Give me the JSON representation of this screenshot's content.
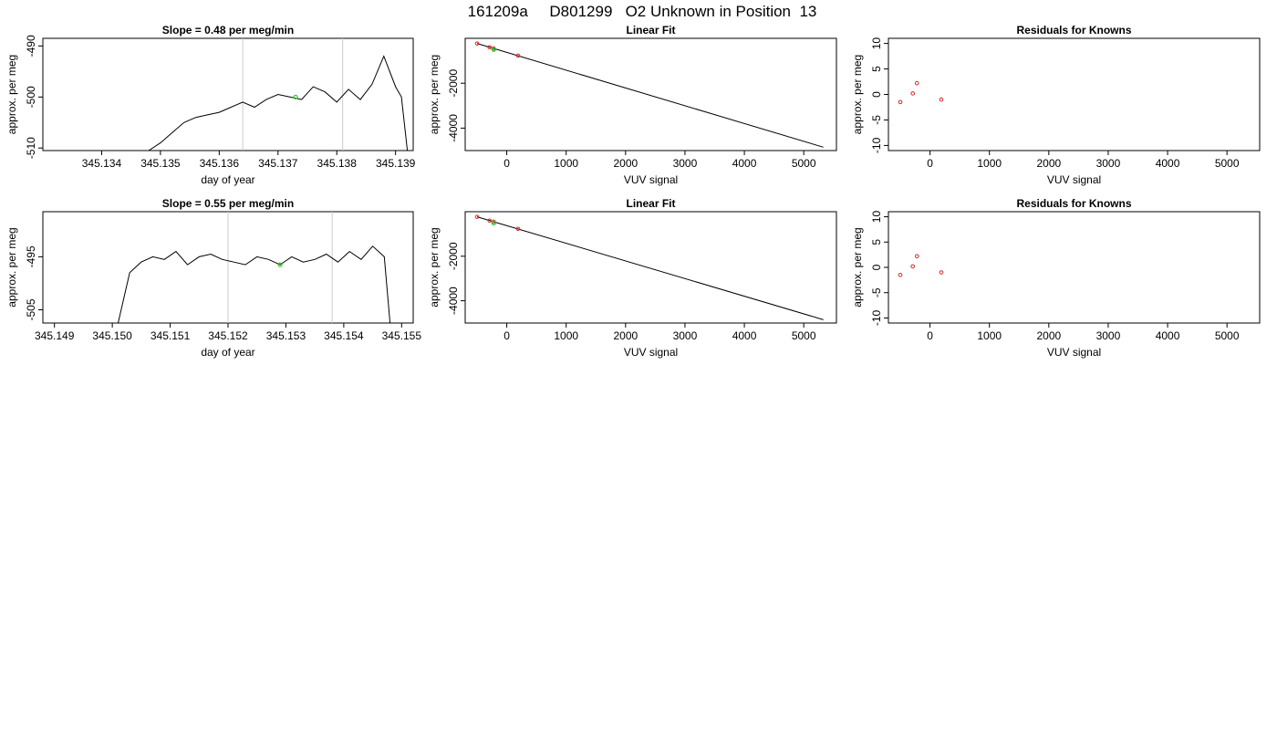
{
  "main_title": "161209a     D801299   O2 Unknown in Position  13",
  "colors": {
    "line": "#000000",
    "known_point": "#d62728",
    "unknown_point": "#22cc22",
    "marker_line": "#cccccc",
    "background": "#ffffff"
  },
  "chart_data": [
    {
      "type": "line",
      "title": "Slope =  0.48  per meg/min",
      "xlabel": "day of year",
      "ylabel": "approx. per meg",
      "xlim": [
        345.133,
        345.1393
      ],
      "ylim": [
        -510.5,
        -488.5
      ],
      "xticks": [
        345.134,
        345.135,
        345.136,
        345.137,
        345.138,
        345.139
      ],
      "xtick_labels": [
        "345.134",
        "345.135",
        "345.136",
        "345.137",
        "345.138",
        "345.139"
      ],
      "yticks": [
        -490,
        -500,
        -510
      ],
      "ytick_labels": [
        "-490",
        "-500",
        "-510"
      ],
      "vlines": [
        345.1364,
        345.1381
      ],
      "highlight_point": {
        "x": 345.1373,
        "y": -500.0
      },
      "series": [
        {
          "x": [
            345.1348,
            345.135,
            345.1352,
            345.1354,
            345.1356,
            345.1358,
            345.136,
            345.1362,
            345.1364,
            345.1366,
            345.1368,
            345.137,
            345.1372,
            345.1374,
            345.1376,
            345.1378,
            345.138,
            345.1382,
            345.1384,
            345.1386,
            345.1388,
            345.139,
            345.1391,
            345.1392
          ],
          "y": [
            -510.5,
            -509.0,
            -507.0,
            -505.0,
            -504.0,
            -503.5,
            -503.0,
            -502.0,
            -501.0,
            -502.0,
            -500.5,
            -499.5,
            -500.0,
            -500.5,
            -498.0,
            -499.0,
            -501.0,
            -498.5,
            -500.5,
            -497.5,
            -492.0,
            -498.0,
            -500.0,
            -510.5
          ]
        }
      ]
    },
    {
      "type": "scatter",
      "title": "Linear Fit",
      "xlabel": "VUV signal",
      "ylabel": "approx. per meg",
      "xlim": [
        -700,
        5550
      ],
      "ylim": [
        -5000,
        0
      ],
      "xticks": [
        0,
        1000,
        2000,
        3000,
        4000,
        5000
      ],
      "xtick_labels": [
        "0",
        "1000",
        "2000",
        "3000",
        "4000",
        "5000"
      ],
      "yticks": [
        -2000,
        -4000
      ],
      "ytick_labels": [
        "-2000",
        "-4000"
      ],
      "fit_line": {
        "x": [
          -500,
          5330
        ],
        "y": [
          -230,
          -4850
        ]
      },
      "known_points": {
        "x": [
          -500,
          -290,
          -220,
          190
        ],
        "y": [
          -231,
          -400,
          -450,
          -770
        ]
      },
      "unknown_points": {
        "x": [
          -220
        ],
        "y": [
          -500
        ]
      }
    },
    {
      "type": "scatter",
      "title": "Residuals for Knowns",
      "xlabel": "VUV signal",
      "ylabel": "approx. per meg",
      "xlim": [
        -700,
        5550
      ],
      "ylim": [
        -11,
        11
      ],
      "xticks": [
        0,
        1000,
        2000,
        3000,
        4000,
        5000
      ],
      "xtick_labels": [
        "0",
        "1000",
        "2000",
        "3000",
        "4000",
        "5000"
      ],
      "yticks": [
        10,
        5,
        0,
        -5,
        -10
      ],
      "ytick_labels": [
        "10",
        "5",
        "0",
        "-5",
        "-10"
      ],
      "known_points": {
        "x": [
          -500,
          -290,
          -220,
          190
        ],
        "y": [
          -1.5,
          0.2,
          2.2,
          -1.0
        ]
      }
    },
    {
      "type": "line",
      "title": "Slope =  0.55  per meg/min",
      "xlabel": "day of year",
      "ylabel": "approx. per meg",
      "xlim": [
        345.1488,
        345.1552
      ],
      "ylim": [
        -507.5,
        -486.5
      ],
      "xticks": [
        345.149,
        345.15,
        345.151,
        345.152,
        345.153,
        345.154,
        345.155
      ],
      "xtick_labels": [
        "345.149",
        "345.150",
        "345.151",
        "345.152",
        "345.153",
        "345.154",
        "345.155"
      ],
      "yticks": [
        -495,
        -505
      ],
      "ytick_labels": [
        "-495",
        "-505"
      ],
      "vlines": [
        345.152,
        345.1538
      ],
      "highlight_point": {
        "x": 345.1529,
        "y": -496.5
      },
      "series": [
        {
          "x": [
            345.1501,
            345.1503,
            345.1505,
            345.1507,
            345.1509,
            345.1511,
            345.1513,
            345.1515,
            345.1517,
            345.1519,
            345.1521,
            345.1523,
            345.1525,
            345.1527,
            345.1529,
            345.1531,
            345.1533,
            345.1535,
            345.1537,
            345.1539,
            345.1541,
            345.1543,
            345.1545,
            345.1547,
            345.1548
          ],
          "y": [
            -507.5,
            -498.0,
            -496.0,
            -495.0,
            -495.5,
            -494.0,
            -496.5,
            -495.0,
            -494.5,
            -495.5,
            -496.0,
            -496.5,
            -495.0,
            -495.5,
            -496.5,
            -495.0,
            -496.0,
            -495.5,
            -494.5,
            -496.0,
            -494.0,
            -495.5,
            -493.0,
            -495.0,
            -507.5
          ]
        }
      ]
    },
    {
      "type": "scatter",
      "title": "Linear Fit",
      "xlabel": "VUV signal",
      "ylabel": "approx. per meg",
      "xlim": [
        -700,
        5550
      ],
      "ylim": [
        -5000,
        0
      ],
      "xticks": [
        0,
        1000,
        2000,
        3000,
        4000,
        5000
      ],
      "xtick_labels": [
        "0",
        "1000",
        "2000",
        "3000",
        "4000",
        "5000"
      ],
      "yticks": [
        -2000,
        -4000
      ],
      "ytick_labels": [
        "-2000",
        "-4000"
      ],
      "fit_line": {
        "x": [
          -500,
          5330
        ],
        "y": [
          -230,
          -4850
        ]
      },
      "known_points": {
        "x": [
          -500,
          -290,
          -220,
          190
        ],
        "y": [
          -231,
          -400,
          -450,
          -770
        ]
      },
      "unknown_points": {
        "x": [
          -220
        ],
        "y": [
          -510
        ]
      }
    },
    {
      "type": "scatter",
      "title": "Residuals for Knowns",
      "xlabel": "VUV signal",
      "ylabel": "approx. per meg",
      "xlim": [
        -700,
        5550
      ],
      "ylim": [
        -11,
        11
      ],
      "xticks": [
        0,
        1000,
        2000,
        3000,
        4000,
        5000
      ],
      "xtick_labels": [
        "0",
        "1000",
        "2000",
        "3000",
        "4000",
        "5000"
      ],
      "yticks": [
        10,
        5,
        0,
        -5,
        -10
      ],
      "ytick_labels": [
        "10",
        "5",
        "0",
        "-5",
        "-10"
      ],
      "known_points": {
        "x": [
          -500,
          -290,
          -220,
          190
        ],
        "y": [
          -1.5,
          0.2,
          2.2,
          -1.0
        ]
      }
    }
  ]
}
